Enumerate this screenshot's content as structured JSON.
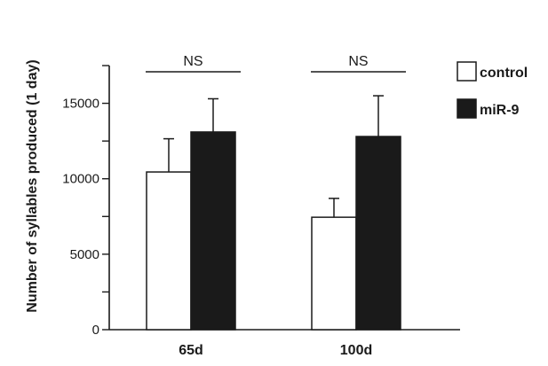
{
  "chart_data": {
    "type": "bar",
    "title": "",
    "xlabel": "",
    "ylabel": "Number of syllables produced (1 day)",
    "ylim": [
      0,
      17500
    ],
    "yticks_labeled": [
      0,
      5000,
      10000,
      15000
    ],
    "ytick_minor_step": 2500,
    "grid": false,
    "legend_position": "top-right",
    "categories": [
      "65d",
      "100d"
    ],
    "series": [
      {
        "name": "control",
        "color": "#ffffff",
        "values": [
          10450,
          7450
        ],
        "errors": [
          2200,
          1250
        ]
      },
      {
        "name": "miR-9",
        "color": "#1a1a1a",
        "values": [
          13100,
          12800
        ],
        "errors": [
          2200,
          2700
        ]
      }
    ],
    "annotations": [
      {
        "category": "65d",
        "label": "NS"
      },
      {
        "category": "100d",
        "label": "NS"
      }
    ]
  }
}
